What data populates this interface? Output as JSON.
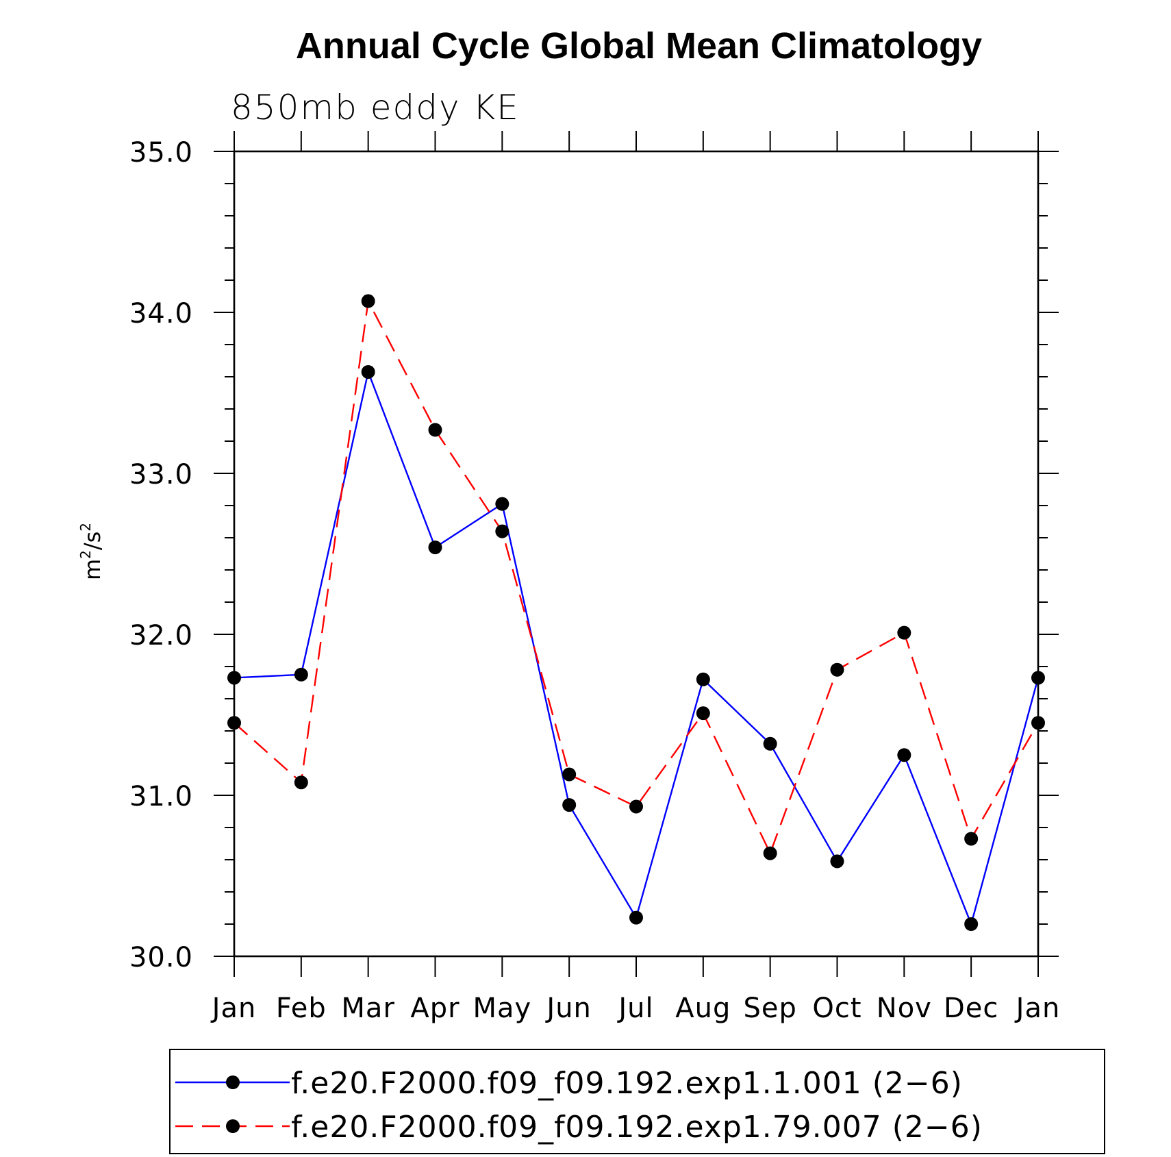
{
  "chart_data": {
    "type": "line",
    "title": "Annual Cycle Global Mean Climatology",
    "subtitle": "850mb eddy KE",
    "xlabel": "",
    "ylabel": "m2/s2",
    "ylabel_base": "m",
    "ylabel_sup": "2",
    "ylabel_sep": "/s",
    "ylabel_sup2": "2",
    "categories": [
      "Jan",
      "Feb",
      "Mar",
      "Apr",
      "May",
      "Jun",
      "Jul",
      "Aug",
      "Sep",
      "Oct",
      "Nov",
      "Dec",
      "Jan"
    ],
    "ylim": [
      30.0,
      35.0
    ],
    "yticks": [
      "30.0",
      "31.0",
      "32.0",
      "33.0",
      "34.0",
      "35.0"
    ],
    "grid": false,
    "legend_position": "bottom",
    "series": [
      {
        "name": "f.e20.F2000.f09_f09.192.exp1.1.001 (2−6)",
        "color": "#0000ff",
        "style": "solid",
        "values": [
          31.73,
          31.75,
          33.63,
          32.54,
          32.81,
          30.94,
          30.24,
          31.72,
          31.32,
          30.59,
          31.25,
          30.2,
          31.73
        ]
      },
      {
        "name": "f.e20.F2000.f09_f09.192.exp1.79.007 (2−6)",
        "color": "#ff0000",
        "style": "dashed",
        "values": [
          31.45,
          31.08,
          34.07,
          33.27,
          32.64,
          31.13,
          30.93,
          31.51,
          30.64,
          31.78,
          32.01,
          30.73,
          31.45
        ]
      }
    ]
  }
}
